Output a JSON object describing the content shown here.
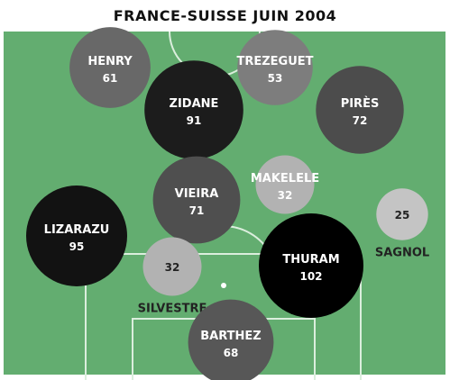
{
  "title": "FRANCE-SUISSE JUIN 2004",
  "colors": {
    "pitch": "#63ad70",
    "lines": "#dbeedd",
    "text_dark": "#222222"
  },
  "chart_data": {
    "type": "bubble",
    "title": "FRANCE-SUISSE JUIN 2004",
    "players": [
      {
        "name": "HENRY",
        "value": 61
      },
      {
        "name": "TREZEGUET",
        "value": 53
      },
      {
        "name": "ZIDANE",
        "value": 91
      },
      {
        "name": "PIRÈS",
        "value": 72
      },
      {
        "name": "MAKELELE",
        "value": 32
      },
      {
        "name": "VIEIRA",
        "value": 71
      },
      {
        "name": "LIZARAZU",
        "value": 95
      },
      {
        "name": "SAGNOL",
        "value": 25
      },
      {
        "name": "SILVESTRE",
        "value": 32
      },
      {
        "name": "THURAM",
        "value": 102
      },
      {
        "name": "BARTHEZ",
        "value": 68
      }
    ]
  }
}
